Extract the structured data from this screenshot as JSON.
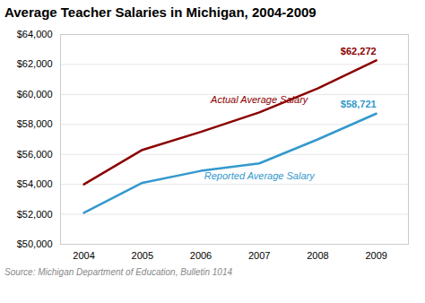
{
  "chart_data": {
    "type": "line",
    "title": "Average Teacher Salaries in Michigan, 2004-2009",
    "caption": "Source: Michigan Department of Education, Bulletin 1014",
    "x": [
      2004,
      2005,
      2006,
      2007,
      2008,
      2009
    ],
    "series": [
      {
        "name": "Actual Average Salary",
        "color": "#8B0000",
        "values": [
          54000,
          56300,
          57500,
          58800,
          60400,
          62272
        ]
      },
      {
        "name": "Reported Average Salary",
        "color": "#3399CC",
        "values": [
          52100,
          54100,
          54900,
          55400,
          57000,
          58721
        ]
      }
    ],
    "annotations": [
      {
        "text": "$62,272",
        "x": 2009,
        "y": 62272,
        "color": "#8B0000"
      },
      {
        "text": "$58,721",
        "x": 2009,
        "y": 58721,
        "color": "#3399CC"
      }
    ],
    "xlim": [
      2003.6,
      2009.55
    ],
    "xticks": [
      2004,
      2005,
      2006,
      2007,
      2008,
      2009
    ],
    "ylim": [
      50000,
      64000
    ],
    "yticks": [
      {
        "value": 50000,
        "label": "$50,000"
      },
      {
        "value": 52000,
        "label": "$52,000"
      },
      {
        "value": 54000,
        "label": "$54,000"
      },
      {
        "value": 56000,
        "label": "$56,000"
      },
      {
        "value": 58000,
        "label": "$58,000"
      },
      {
        "value": 60000,
        "label": "$60,000"
      },
      {
        "value": 62000,
        "label": "$62,000"
      },
      {
        "value": 64000,
        "label": "$64,000"
      }
    ],
    "grid": true
  }
}
